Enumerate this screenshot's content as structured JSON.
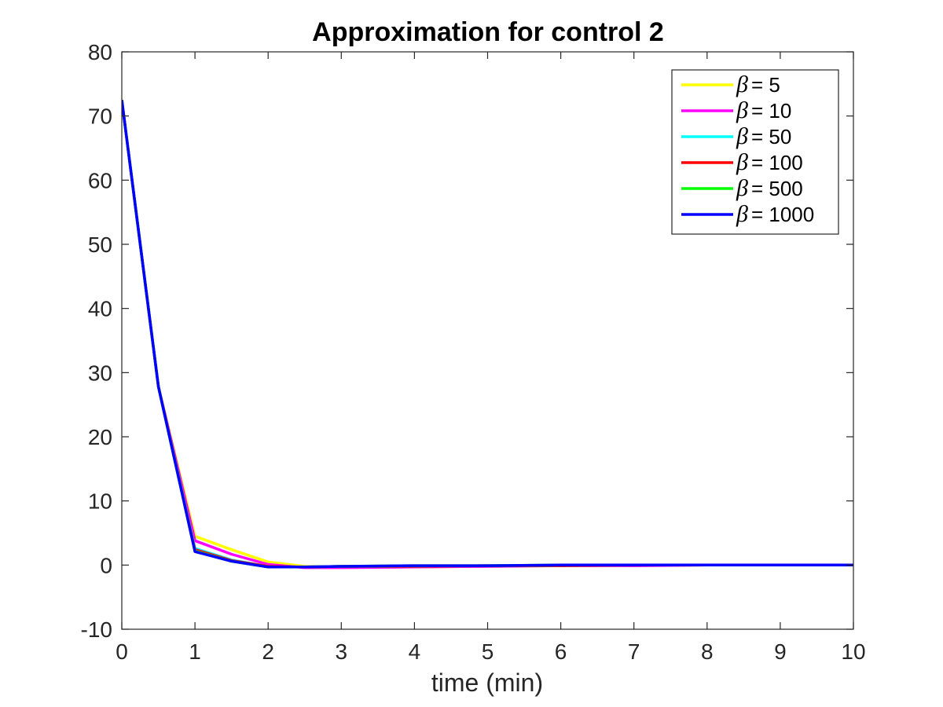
{
  "chart_data": {
    "type": "line",
    "title": "Approximation for control 2",
    "xlabel": "time (min)",
    "ylabel": "",
    "xlim": [
      0,
      10
    ],
    "ylim": [
      -10,
      80
    ],
    "xticks": [
      "0",
      "1",
      "2",
      "3",
      "4",
      "5",
      "6",
      "7",
      "8",
      "9",
      "10"
    ],
    "yticks": [
      "-10",
      "0",
      "10",
      "20",
      "30",
      "40",
      "50",
      "60",
      "70",
      "80"
    ],
    "grid": false,
    "legend_position": "top-right",
    "x": [
      0,
      0.5,
      1,
      1.5,
      2,
      2.5,
      3,
      4,
      5,
      6,
      7,
      8,
      9,
      10
    ],
    "series": [
      {
        "name": "β = 5",
        "beta_symbol": "β",
        "beta_value": "= 5",
        "color": "#ffff00",
        "values": [
          72.5,
          27.8,
          4.5,
          2.4,
          0.5,
          -0.2,
          -0.3,
          -0.3,
          -0.2,
          -0.1,
          -0.1,
          0,
          0,
          0
        ]
      },
      {
        "name": "β = 10",
        "beta_symbol": "β",
        "beta_value": "= 10",
        "color": "#ff00ff",
        "values": [
          72.5,
          27.8,
          3.8,
          1.7,
          0.1,
          -0.4,
          -0.4,
          -0.3,
          -0.2,
          -0.1,
          -0.1,
          0,
          0,
          0
        ]
      },
      {
        "name": "β = 50",
        "beta_symbol": "β",
        "beta_value": "= 50",
        "color": "#00ffff",
        "values": [
          72.5,
          27.8,
          2.6,
          0.8,
          -0.2,
          -0.3,
          -0.2,
          -0.2,
          -0.1,
          -0.1,
          0,
          0,
          0,
          0
        ]
      },
      {
        "name": "β = 100",
        "beta_symbol": "β",
        "beta_value": "= 100",
        "color": "#ff0000",
        "values": [
          72.5,
          27.8,
          2.4,
          0.7,
          -0.2,
          -0.3,
          -0.2,
          -0.2,
          -0.1,
          -0.1,
          0,
          0,
          0,
          0
        ]
      },
      {
        "name": "β = 500",
        "beta_symbol": "β",
        "beta_value": "= 500",
        "color": "#00ff00",
        "values": [
          72.5,
          27.8,
          2.2,
          0.6,
          -0.3,
          -0.3,
          -0.2,
          -0.1,
          -0.1,
          0,
          0,
          0,
          0,
          0
        ]
      },
      {
        "name": "β = 1000",
        "beta_symbol": "β",
        "beta_value": "= 1000",
        "color": "#0000ff",
        "values": [
          72.5,
          27.8,
          2.1,
          0.6,
          -0.3,
          -0.3,
          -0.2,
          -0.1,
          -0.1,
          0,
          0,
          0,
          0,
          0
        ]
      }
    ]
  }
}
